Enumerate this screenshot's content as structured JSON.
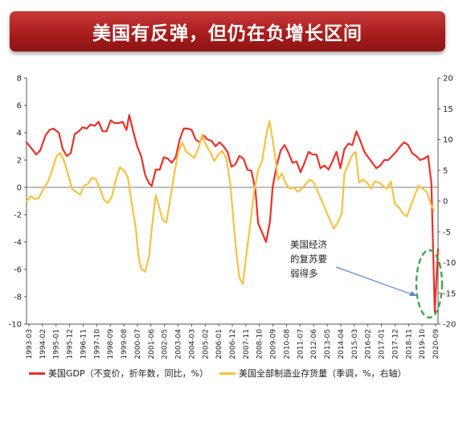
{
  "banner": {
    "title": "美国有反弹，但仍在负增长区间"
  },
  "annotation": {
    "lines": [
      "美国经济",
      "的复苏要",
      "弱得多"
    ]
  },
  "colors": {
    "gdp": "#e8312a",
    "inventory": "#f6c243",
    "highlight_circle": "#3fa64a",
    "arrow": "#5b8bd0",
    "banner": "#b02424"
  },
  "chart_data": {
    "type": "line",
    "x_ticks": [
      "1993-03",
      "1994-02",
      "1995-01",
      "1995-12",
      "1996-11",
      "1997-10",
      "1998-09",
      "1999-08",
      "2000-07",
      "2001-06",
      "2002-05",
      "2003-04",
      "2004-03",
      "2005-02",
      "2006-01",
      "2006-12",
      "2007-11",
      "2008-10",
      "2009-09",
      "2010-08",
      "2011-07",
      "2012-06",
      "2013-05",
      "2014-04",
      "2015-03",
      "2016-02",
      "2017-01",
      "2017-12",
      "2018-11",
      "2019-10",
      "2020-09"
    ],
    "y_left": {
      "range": [
        -10,
        8
      ],
      "ticks": [
        -10,
        -8,
        -6,
        -4,
        -2,
        0,
        2,
        4,
        6,
        8
      ]
    },
    "y_right": {
      "range": [
        -20,
        20
      ],
      "ticks": [
        -20,
        -15,
        -10,
        -5,
        0,
        5,
        10,
        15,
        20
      ]
    },
    "series": [
      {
        "name": "美国GDP（不变价，折年数，同比，%）",
        "axis": "left",
        "points": [
          [
            1993.17,
            3.3
          ],
          [
            1993.5,
            2.9
          ],
          [
            1993.9,
            2.4
          ],
          [
            1994.2,
            2.7
          ],
          [
            1994.6,
            3.8
          ],
          [
            1994.9,
            4.2
          ],
          [
            1995.2,
            4.3
          ],
          [
            1995.6,
            4.0
          ],
          [
            1995.9,
            2.8
          ],
          [
            1996.2,
            2.3
          ],
          [
            1996.5,
            2.5
          ],
          [
            1996.8,
            3.9
          ],
          [
            1997.1,
            4.1
          ],
          [
            1997.4,
            4.4
          ],
          [
            1997.7,
            4.3
          ],
          [
            1998.0,
            4.6
          ],
          [
            1998.3,
            4.5
          ],
          [
            1998.6,
            4.8
          ],
          [
            1998.9,
            4.1
          ],
          [
            1999.2,
            4.1
          ],
          [
            1999.5,
            4.9
          ],
          [
            1999.8,
            4.7
          ],
          [
            2000.1,
            4.7
          ],
          [
            2000.4,
            4.8
          ],
          [
            2000.7,
            4.2
          ],
          [
            2000.9,
            5.3
          ],
          [
            2001.2,
            4.1
          ],
          [
            2001.5,
            3.0
          ],
          [
            2001.8,
            2.3
          ],
          [
            2002.1,
            0.9
          ],
          [
            2002.4,
            0.3
          ],
          [
            2002.6,
            0.1
          ],
          [
            2002.9,
            1.3
          ],
          [
            2003.2,
            1.3
          ],
          [
            2003.5,
            2.2
          ],
          [
            2003.8,
            2.1
          ],
          [
            2004.1,
            1.8
          ],
          [
            2004.4,
            2.2
          ],
          [
            2004.7,
            3.5
          ],
          [
            2005.0,
            4.3
          ],
          [
            2005.3,
            4.3
          ],
          [
            2005.6,
            4.2
          ],
          [
            2005.9,
            3.5
          ],
          [
            2006.2,
            3.3
          ],
          [
            2006.5,
            3.8
          ],
          [
            2006.8,
            3.5
          ],
          [
            2007.1,
            3.4
          ],
          [
            2007.4,
            3.0
          ],
          [
            2007.7,
            3.3
          ],
          [
            2008.0,
            3.0
          ],
          [
            2008.3,
            2.6
          ],
          [
            2008.6,
            1.5
          ],
          [
            2008.9,
            1.7
          ],
          [
            2009.2,
            2.3
          ],
          [
            2009.5,
            2.1
          ],
          [
            2009.8,
            1.3
          ],
          [
            2010.1,
            1.2
          ],
          [
            2010.4,
            -0.2
          ],
          [
            2010.6,
            -2.6
          ],
          [
            2010.9,
            -3.3
          ],
          [
            2011.2,
            -4.0
          ],
          [
            2011.5,
            -2.5
          ],
          [
            2011.7,
            0.0
          ],
          [
            2012.0,
            1.6
          ],
          [
            2012.3,
            2.7
          ],
          [
            2012.6,
            3.1
          ],
          [
            2012.9,
            2.5
          ],
          [
            2013.2,
            1.8
          ],
          [
            2013.5,
            1.9
          ],
          [
            2013.8,
            1.1
          ],
          [
            2014.1,
            1.8
          ],
          [
            2014.4,
            2.6
          ],
          [
            2014.7,
            2.4
          ],
          [
            2015.0,
            2.4
          ],
          [
            2015.3,
            1.4
          ],
          [
            2015.6,
            1.6
          ],
          [
            2015.9,
            1.3
          ],
          [
            2016.2,
            1.9
          ],
          [
            2016.5,
            2.6
          ],
          [
            2016.8,
            1.4
          ],
          [
            2017.1,
            2.8
          ],
          [
            2017.4,
            3.2
          ],
          [
            2017.7,
            3.1
          ],
          [
            2018.0,
            4.1
          ],
          [
            2018.3,
            3.4
          ],
          [
            2018.6,
            2.6
          ],
          [
            2018.9,
            2.2
          ],
          [
            2019.2,
            1.8
          ],
          [
            2019.5,
            1.4
          ],
          [
            2019.8,
            1.6
          ],
          [
            2020.1,
            2.0
          ],
          [
            2020.4,
            2.0
          ],
          [
            2020.7,
            2.3
          ],
          [
            2021.0,
            2.6
          ],
          [
            2021.3,
            3.0
          ],
          [
            2021.6,
            3.3
          ],
          [
            2021.9,
            3.1
          ],
          [
            2022.2,
            2.5
          ],
          [
            2022.5,
            2.3
          ],
          [
            2022.8,
            2.0
          ],
          [
            2023.1,
            2.1
          ],
          [
            2023.4,
            2.3
          ],
          [
            2023.65,
            0.3
          ],
          [
            2023.9,
            -9.1
          ],
          [
            2024.15,
            -4.5
          ]
        ]
      },
      {
        "name": "美国全部制造业存货量（季调，%，右轴）",
        "axis": "right",
        "points": [
          [
            1993.17,
            0.0
          ],
          [
            1993.5,
            0.8
          ],
          [
            1993.8,
            0.3
          ],
          [
            1994.1,
            0.5
          ],
          [
            1994.4,
            1.8
          ],
          [
            1994.8,
            3.2
          ],
          [
            1995.1,
            5.0
          ],
          [
            1995.4,
            7.2
          ],
          [
            1995.7,
            7.8
          ],
          [
            1996.0,
            6.5
          ],
          [
            1996.3,
            4.3
          ],
          [
            1996.6,
            2.0
          ],
          [
            1996.9,
            1.5
          ],
          [
            1997.2,
            1.0
          ],
          [
            1997.5,
            2.5
          ],
          [
            1997.8,
            2.8
          ],
          [
            1998.1,
            3.8
          ],
          [
            1998.4,
            3.5
          ],
          [
            1998.7,
            2.0
          ],
          [
            1999.0,
            0.2
          ],
          [
            1999.3,
            -0.3
          ],
          [
            1999.6,
            0.8
          ],
          [
            1999.9,
            3.5
          ],
          [
            2000.2,
            5.5
          ],
          [
            2000.5,
            5.0
          ],
          [
            2000.8,
            3.8
          ],
          [
            2001.1,
            -0.5
          ],
          [
            2001.4,
            -4.5
          ],
          [
            2001.6,
            -9.0
          ],
          [
            2001.8,
            -11.0
          ],
          [
            2002.1,
            -11.5
          ],
          [
            2002.4,
            -9.0
          ],
          [
            2002.6,
            -4.5
          ],
          [
            2002.9,
            1.0
          ],
          [
            2003.1,
            -0.5
          ],
          [
            2003.4,
            -3.0
          ],
          [
            2003.7,
            -3.5
          ],
          [
            2004.0,
            0.5
          ],
          [
            2004.3,
            4.5
          ],
          [
            2004.6,
            8.0
          ],
          [
            2004.9,
            9.5
          ],
          [
            2005.2,
            8.0
          ],
          [
            2005.5,
            7.5
          ],
          [
            2005.8,
            7.0
          ],
          [
            2006.1,
            8.5
          ],
          [
            2006.4,
            10.8
          ],
          [
            2006.7,
            9.0
          ],
          [
            2007.0,
            8.0
          ],
          [
            2007.3,
            6.5
          ],
          [
            2007.6,
            7.5
          ],
          [
            2007.9,
            8.2
          ],
          [
            2008.2,
            7.0
          ],
          [
            2008.5,
            3.0
          ],
          [
            2008.8,
            -4.5
          ],
          [
            2009.0,
            -9.0
          ],
          [
            2009.2,
            -12.5
          ],
          [
            2009.45,
            -13.5
          ],
          [
            2009.7,
            -9.0
          ],
          [
            2010.0,
            -4.0
          ],
          [
            2010.3,
            1.5
          ],
          [
            2010.6,
            5.0
          ],
          [
            2010.9,
            6.5
          ],
          [
            2011.2,
            10.5
          ],
          [
            2011.45,
            13.0
          ],
          [
            2011.7,
            10.0
          ],
          [
            2011.9,
            7.0
          ],
          [
            2012.1,
            3.5
          ],
          [
            2012.4,
            4.5
          ],
          [
            2012.7,
            2.8
          ],
          [
            2013.0,
            2.0
          ],
          [
            2013.3,
            2.2
          ],
          [
            2013.6,
            1.5
          ],
          [
            2013.9,
            2.0
          ],
          [
            2014.2,
            2.8
          ],
          [
            2014.5,
            3.5
          ],
          [
            2014.8,
            3.0
          ],
          [
            2015.1,
            1.5
          ],
          [
            2015.4,
            0.0
          ],
          [
            2015.7,
            -1.5
          ],
          [
            2016.0,
            -3.0
          ],
          [
            2016.3,
            -4.5
          ],
          [
            2016.6,
            -3.5
          ],
          [
            2016.9,
            -2.0
          ],
          [
            2017.1,
            4.5
          ],
          [
            2017.4,
            6.0
          ],
          [
            2017.7,
            7.5
          ],
          [
            2017.95,
            8.0
          ],
          [
            2018.2,
            3.0
          ],
          [
            2018.5,
            3.5
          ],
          [
            2018.8,
            3.0
          ],
          [
            2019.1,
            2.0
          ],
          [
            2019.4,
            3.2
          ],
          [
            2019.7,
            3.0
          ],
          [
            2020.0,
            2.5
          ],
          [
            2020.3,
            2.0
          ],
          [
            2020.6,
            3.2
          ],
          [
            2020.9,
            -0.5
          ],
          [
            2021.2,
            -1.0
          ],
          [
            2021.5,
            -2.0
          ],
          [
            2021.8,
            -2.5
          ],
          [
            2022.1,
            -0.8
          ],
          [
            2022.4,
            1.0
          ],
          [
            2022.7,
            2.5
          ],
          [
            2023.0,
            2.0
          ],
          [
            2023.3,
            1.5
          ],
          [
            2023.6,
            -0.5
          ],
          [
            2023.85,
            -1.5
          ]
        ]
      }
    ],
    "legend_position": "bottom",
    "grid": false
  }
}
